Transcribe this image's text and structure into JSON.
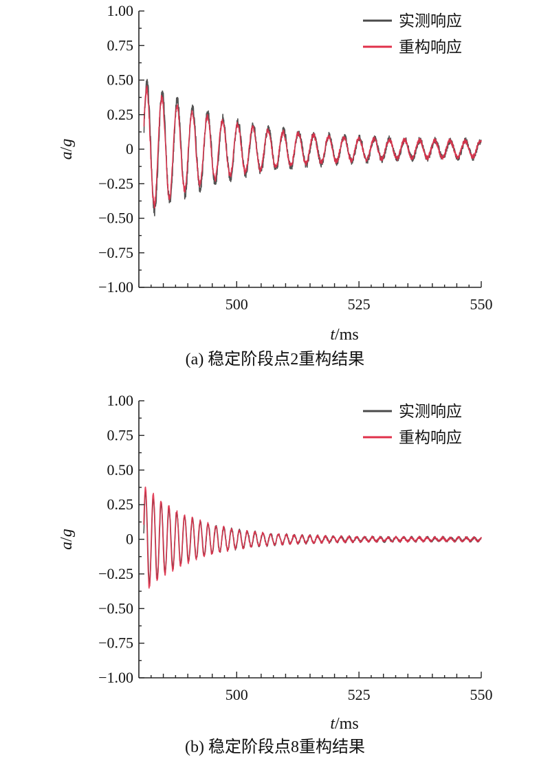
{
  "chart_data": [
    {
      "type": "line",
      "caption": "(a) 稳定阶段点2重构结果",
      "xlabel_italic": "t",
      "xlabel_unit": "/ms",
      "ylabel_italic_a": "a",
      "ylabel_sep": "/",
      "ylabel_italic_g": "g",
      "xlim": [
        480,
        550
      ],
      "ylim": [
        -1.0,
        1.0
      ],
      "x_ticks": [
        500,
        525,
        550
      ],
      "x_tick_labels": [
        "500",
        "525",
        "550"
      ],
      "y_ticks": [
        1.0,
        0.75,
        0.5,
        0.25,
        0,
        -0.25,
        -0.5,
        -0.75,
        -1.0
      ],
      "y_tick_labels": [
        "1.00",
        "0.75",
        "0.50",
        "0.25",
        "0",
        "−0.25",
        "−0.50",
        "−0.75",
        "−1.00"
      ],
      "legend_position": "top-right",
      "grid": false,
      "series": [
        {
          "name": "实测响应",
          "color": "#4a4a4a",
          "model": {
            "amp": 0.45,
            "decay": 0.058,
            "period": 3.1,
            "floor": 0.05,
            "phase": 0.2,
            "noise": 0.05
          }
        },
        {
          "name": "重构响应",
          "color": "#e0304a",
          "model": {
            "amp": 0.4,
            "decay": 0.06,
            "period": 3.1,
            "floor": 0.05,
            "phase": 0.35,
            "noise": 0.035
          }
        }
      ]
    },
    {
      "type": "line",
      "caption": "(b) 稳定阶段点8重构结果",
      "xlabel_italic": "t",
      "xlabel_unit": "/ms",
      "ylabel_italic_a": "a",
      "ylabel_sep": "/",
      "ylabel_italic_g": "g",
      "xlim": [
        480,
        550
      ],
      "ylim": [
        -1.0,
        1.0
      ],
      "x_ticks": [
        500,
        525,
        550
      ],
      "x_tick_labels": [
        "500",
        "525",
        "550"
      ],
      "y_ticks": [
        1.0,
        0.75,
        0.5,
        0.25,
        0,
        -0.25,
        -0.5,
        -0.75,
        -1.0
      ],
      "y_tick_labels": [
        "1.00",
        "0.75",
        "0.50",
        "0.25",
        "0",
        "−0.25",
        "−0.50",
        "−0.75",
        "−1.00"
      ],
      "legend_position": "top-right",
      "grid": false,
      "series": [
        {
          "name": "实测响应",
          "color": "#4a4a4a",
          "model": {
            "amp": 0.34,
            "decay": 0.095,
            "period": 1.6,
            "floor": 0.012,
            "phase": 0.1,
            "noise": 0.02
          }
        },
        {
          "name": "重构响应",
          "color": "#e0304a",
          "model": {
            "amp": 0.38,
            "decay": 0.1,
            "period": 1.6,
            "floor": 0.012,
            "phase": 0.25,
            "noise": 0.02
          }
        }
      ]
    }
  ]
}
